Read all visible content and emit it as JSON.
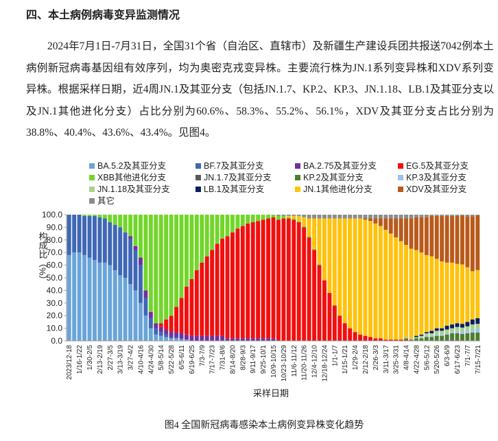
{
  "heading": "四、本土病例病毒变异监测情况",
  "paragraph": "2024年7月1日-7月31日，全国31个省（自治区、直辖市）及新疆生产建设兵团共报送7042例本土病例新冠病毒基因组有效序列，均为奥密克戎变异株。主要流行株为JN.1系列变异株和XDV系列变异株。根据采样日期，近4周JN.1及其亚分支（包括JN.1.7、KP.2、KP.3、JN.1.18、LB.1及其亚分支以及JN.1其他进化分支）占比分别为60.6%、58.3%、55.2%、56.1%，XDV及其亚分支占比分别为38.8%、40.4%、43.6%、43.4%。见图4。",
  "chart_data": {
    "type": "bar",
    "stacked": true,
    "y_label": "构成比（%）",
    "x_label": "采样日期",
    "categories": [
      "2023/12-18",
      null,
      "1/16-1/22",
      null,
      "1/30-2/5",
      null,
      "2/13-2/19",
      null,
      "2/27-3/5",
      null,
      "3/13-3/19",
      null,
      "3/27-4/2",
      null,
      "4/10-4/16",
      null,
      "4/24-4/30",
      null,
      "5/8-5/14",
      null,
      "5/22-5/28",
      null,
      "6/5-6/11",
      null,
      "6/19-6/25",
      null,
      "7/3-7/9",
      null,
      "7/17-7/23",
      null,
      "7/31-8/6",
      null,
      "8/14-8/20",
      null,
      "8/28-9/3",
      null,
      "9/11-9/17",
      null,
      "9/25-10/1",
      null,
      "10/9-10/15",
      null,
      "10/23-10/29",
      null,
      "11/6-11/12",
      null,
      "11/20-11/26",
      null,
      "12/4-12/10",
      null,
      "12/18-12/24",
      null,
      "1/1-1/7",
      null,
      "1/15-1/21",
      null,
      "1/29-2/4",
      null,
      "2/12-2/18",
      null,
      "2/26-3/3",
      null,
      "3/11-3/17",
      null,
      "3/25-3/31",
      null,
      "4/8-4/14",
      null,
      "4/22-4/28",
      null,
      "5/6-5/12",
      null,
      "5/20-5/26",
      null,
      "6/3-6/9",
      null,
      "6/17-6/23",
      null,
      "7/1-7/7",
      null,
      "7/15-7/21"
    ],
    "ylim": [
      0,
      100
    ],
    "yticks": [
      {
        "value": 0,
        "label": "0.0"
      },
      {
        "value": 10,
        "label": "10.0"
      },
      {
        "value": 20,
        "label": "20.0"
      },
      {
        "value": 30,
        "label": "30.0"
      },
      {
        "value": 40,
        "label": "40.0"
      },
      {
        "value": 50,
        "label": "50.0"
      },
      {
        "value": 60,
        "label": "60.0"
      },
      {
        "value": 70,
        "label": "70.0"
      },
      {
        "value": 80,
        "label": "80.0"
      },
      {
        "value": 90,
        "label": "90.0"
      },
      {
        "value": 100,
        "label": "100.0"
      }
    ],
    "series": [
      {
        "name": "BA.5.2及其亚分支",
        "color": "#6aa4d8",
        "values": [
          68,
          70,
          70,
          68,
          66,
          64,
          62,
          62,
          60,
          56,
          52,
          50,
          45,
          40,
          30,
          20,
          10,
          5,
          4,
          3,
          2,
          2,
          1,
          1,
          0,
          0,
          0,
          0,
          0,
          0,
          0,
          0,
          0,
          0,
          0,
          0,
          0,
          0,
          0,
          0,
          0,
          0,
          0,
          0,
          0,
          0,
          0,
          0,
          0,
          0,
          0,
          0,
          0,
          0,
          0,
          0,
          0,
          0,
          0,
          0,
          0,
          0,
          0,
          0,
          0,
          0,
          0,
          0,
          0,
          0,
          0,
          0,
          0,
          0,
          0,
          0,
          0,
          0,
          0,
          0,
          0
        ]
      },
      {
        "name": "BF.7及其亚分支",
        "color": "#3f67b5",
        "values": [
          32,
          30,
          30,
          31,
          33,
          35,
          36,
          35,
          34,
          36,
          38,
          36,
          36,
          32,
          30,
          14,
          8,
          5,
          3,
          2,
          1,
          1,
          1,
          0,
          0,
          0,
          0,
          0,
          0,
          0,
          0,
          0,
          0,
          0,
          0,
          0,
          0,
          0,
          0,
          0,
          0,
          0,
          0,
          0,
          0,
          0,
          0,
          0,
          0,
          0,
          0,
          0,
          0,
          0,
          0,
          0,
          0,
          0,
          0,
          0,
          0,
          0,
          0,
          0,
          0,
          0,
          0,
          0,
          0,
          0,
          0,
          0,
          0,
          0,
          0,
          0,
          0,
          0,
          0,
          0,
          0
        ]
      },
      {
        "name": "BA.2.75及其亚分支",
        "color": "#7030a0",
        "values": [
          0,
          0,
          0,
          0,
          0,
          0,
          0,
          0,
          0,
          0,
          0,
          0,
          2,
          3,
          6,
          6,
          5,
          4,
          4,
          4,
          4,
          4,
          4,
          4,
          4,
          4,
          4,
          4,
          4,
          4,
          4,
          2,
          2,
          2,
          2,
          2,
          2,
          2,
          2,
          2,
          2,
          0,
          0,
          0,
          0,
          0,
          0,
          0,
          0,
          0,
          0,
          0,
          0,
          0,
          0,
          0,
          0,
          0,
          0,
          0,
          0,
          0,
          0,
          0,
          0,
          0,
          0,
          0,
          0,
          0,
          0,
          0,
          0,
          0,
          0,
          0,
          0,
          0,
          0,
          0,
          0
        ]
      },
      {
        "name": "EG.5及其亚分支",
        "color": "#f20f0f",
        "values": [
          0,
          0,
          0,
          0,
          0,
          0,
          0,
          0,
          0,
          0,
          0,
          0,
          0,
          0,
          0,
          0,
          0,
          0,
          3,
          8,
          13,
          20,
          28,
          38,
          45,
          52,
          58,
          63,
          68,
          73,
          77,
          81,
          84,
          87,
          89,
          91,
          92,
          93,
          94,
          95,
          96,
          96,
          97,
          97,
          96,
          94,
          90,
          82,
          72,
          60,
          48,
          38,
          28,
          20,
          14,
          10,
          7,
          5,
          4,
          3,
          2,
          2,
          1,
          1,
          1,
          1,
          1,
          0,
          0,
          0,
          0,
          0,
          0,
          0,
          0,
          0,
          0,
          0,
          0,
          0,
          0
        ]
      },
      {
        "name": "XBB其他进化分支",
        "color": "#72d62a",
        "values": [
          0,
          0,
          0,
          1,
          1,
          1,
          2,
          3,
          6,
          8,
          10,
          14,
          17,
          25,
          34,
          60,
          77,
          86,
          86,
          83,
          80,
          73,
          66,
          57,
          51,
          44,
          38,
          33,
          28,
          23,
          19,
          17,
          14,
          11,
          9,
          7,
          6,
          5,
          4,
          3,
          2,
          3,
          2,
          1,
          1,
          1,
          1,
          1,
          1,
          1,
          0,
          0,
          0,
          0,
          0,
          0,
          0,
          0,
          0,
          0,
          0,
          0,
          0,
          0,
          0,
          0,
          0,
          0,
          0,
          0,
          0,
          0,
          0,
          0,
          0,
          0,
          0,
          0,
          0,
          0,
          0
        ]
      },
      {
        "name": "JN.1.7及其亚分支",
        "color": "#595959",
        "values": [
          0,
          0,
          0,
          0,
          0,
          0,
          0,
          0,
          0,
          0,
          0,
          0,
          0,
          0,
          0,
          0,
          0,
          0,
          0,
          0,
          0,
          0,
          0,
          0,
          0,
          0,
          0,
          0,
          0,
          0,
          0,
          0,
          0,
          0,
          0,
          0,
          0,
          0,
          0,
          0,
          0,
          0,
          0,
          0,
          0,
          0,
          0,
          0,
          0,
          0,
          0,
          0,
          0,
          0,
          0,
          0,
          0,
          0,
          0,
          0,
          0,
          0,
          0,
          0,
          0,
          0,
          0,
          0,
          0,
          0,
          0,
          0,
          0,
          0,
          1,
          1,
          1,
          0.5,
          0.5,
          0.5,
          0.5
        ]
      },
      {
        "name": "KP.2及其亚分支",
        "color": "#4e7d2c",
        "values": [
          0,
          0,
          0,
          0,
          0,
          0,
          0,
          0,
          0,
          0,
          0,
          0,
          0,
          0,
          0,
          0,
          0,
          0,
          0,
          0,
          0,
          0,
          0,
          0,
          0,
          0,
          0,
          0,
          0,
          0,
          0,
          0,
          0,
          0,
          0,
          0,
          0,
          0,
          0,
          0,
          0,
          0,
          0,
          0,
          0,
          0,
          0,
          0,
          0,
          0,
          0,
          0,
          0,
          0,
          0,
          0,
          0,
          0,
          0,
          0,
          0,
          0,
          0,
          0,
          0,
          0,
          1,
          1,
          2,
          2,
          3,
          3,
          4,
          4,
          4,
          5,
          5,
          5,
          5.5,
          6,
          6
        ]
      },
      {
        "name": "KP.3及其亚分支",
        "color": "#9dc3e6",
        "values": [
          0,
          0,
          0,
          0,
          0,
          0,
          0,
          0,
          0,
          0,
          0,
          0,
          0,
          0,
          0,
          0,
          0,
          0,
          0,
          0,
          0,
          0,
          0,
          0,
          0,
          0,
          0,
          0,
          0,
          0,
          0,
          0,
          0,
          0,
          0,
          0,
          0,
          0,
          0,
          0,
          0,
          0,
          0,
          0,
          0,
          0,
          0,
          0,
          0,
          0,
          0,
          0,
          0,
          0,
          0,
          0,
          0,
          0,
          0,
          0,
          0,
          0,
          0,
          0,
          0,
          0,
          0,
          0,
          0,
          0,
          1,
          1,
          1,
          1,
          1,
          1,
          2,
          2,
          2,
          2.5,
          3
        ]
      },
      {
        "name": "JN.1.18及其亚分支",
        "color": "#a9d18e",
        "values": [
          0,
          0,
          0,
          0,
          0,
          0,
          0,
          0,
          0,
          0,
          0,
          0,
          0,
          0,
          0,
          0,
          0,
          0,
          0,
          0,
          0,
          0,
          0,
          0,
          0,
          0,
          0,
          0,
          0,
          0,
          0,
          0,
          0,
          0,
          0,
          0,
          0,
          0,
          0,
          0,
          0,
          0,
          0,
          0,
          0,
          0,
          0,
          0,
          0,
          0,
          0,
          0,
          0,
          0,
          0,
          0,
          0,
          0,
          0,
          0,
          0,
          0,
          0,
          0,
          0,
          0,
          1,
          1,
          1,
          2,
          2,
          2,
          3,
          3,
          3,
          3,
          3,
          3,
          3.5,
          4,
          4
        ]
      },
      {
        "name": "LB.1及其亚分支",
        "color": "#0b1f5c",
        "values": [
          0,
          0,
          0,
          0,
          0,
          0,
          0,
          0,
          0,
          0,
          0,
          0,
          0,
          0,
          0,
          0,
          0,
          0,
          0,
          0,
          0,
          0,
          0,
          0,
          0,
          0,
          0,
          0,
          0,
          0,
          0,
          0,
          0,
          0,
          0,
          0,
          0,
          0,
          0,
          0,
          0,
          0,
          0,
          0,
          0,
          0,
          0,
          0,
          0,
          0,
          0,
          0,
          0,
          0,
          0,
          0,
          0,
          0,
          0,
          0,
          0,
          0,
          0,
          0,
          0,
          0,
          0,
          0,
          1,
          1,
          1,
          2,
          2,
          2,
          3,
          3,
          3,
          3,
          3.5,
          4,
          4.5
        ]
      },
      {
        "name": "JN.1其他进化分支",
        "color": "#ffc20e",
        "values": [
          0,
          0,
          0,
          0,
          0,
          0,
          0,
          0,
          0,
          0,
          0,
          0,
          0,
          0,
          0,
          0,
          0,
          0,
          0,
          0,
          0,
          0,
          0,
          0,
          0,
          0,
          0,
          0,
          0,
          0,
          0,
          0,
          0,
          0,
          0,
          0,
          0,
          0,
          0,
          0,
          0,
          0,
          0,
          1,
          2,
          4,
          7,
          14,
          24,
          36,
          49,
          59,
          69,
          77,
          83,
          87,
          90,
          92,
          92,
          92,
          91,
          89,
          87,
          84,
          81,
          78,
          73,
          71,
          68,
          65,
          61,
          59,
          55,
          53,
          50,
          49,
          47,
          47.1,
          43.3,
          38.2,
          38.1
        ]
      },
      {
        "name": "XDV及其亚分支",
        "color": "#b85a1b",
        "values": [
          0,
          0,
          0,
          0,
          0,
          0,
          0,
          0,
          0,
          0,
          0,
          0,
          0,
          0,
          0,
          0,
          0,
          0,
          0,
          0,
          0,
          0,
          0,
          0,
          0,
          0,
          0,
          0,
          0,
          0,
          0,
          0,
          0,
          0,
          0,
          0,
          0,
          0,
          0,
          0,
          0,
          0,
          0,
          0,
          0,
          0,
          0,
          0,
          0,
          0,
          0,
          0,
          0,
          0,
          0,
          0,
          0,
          0,
          1,
          2,
          4,
          6,
          9,
          12,
          15,
          18,
          21,
          24,
          26,
          28,
          30,
          32,
          34,
          36,
          37,
          37,
          38,
          38.8,
          40.4,
          43.6,
          43.4
        ]
      },
      {
        "name": "其它",
        "color": "#8c8c8c",
        "values": [
          0,
          0,
          0,
          0,
          0,
          0,
          0,
          0,
          0,
          0,
          0,
          0,
          0,
          0,
          0,
          0,
          0,
          0,
          0,
          0,
          0,
          0,
          0,
          0,
          0,
          0,
          0,
          0,
          0,
          0,
          0,
          0,
          0,
          0,
          0,
          0,
          0,
          0,
          0,
          0,
          0,
          1,
          1,
          1,
          1,
          1,
          2,
          3,
          3,
          3,
          3,
          3,
          3,
          3,
          3,
          3,
          3,
          3,
          3,
          3,
          3,
          3,
          3,
          3,
          3,
          3,
          3,
          3,
          2,
          2,
          2,
          1,
          1,
          1,
          1,
          1,
          1,
          0.6,
          1.3,
          1.2,
          0.5
        ]
      }
    ]
  },
  "caption": "图4  全国新冠病毒感染本土病例变异株变化趋势"
}
